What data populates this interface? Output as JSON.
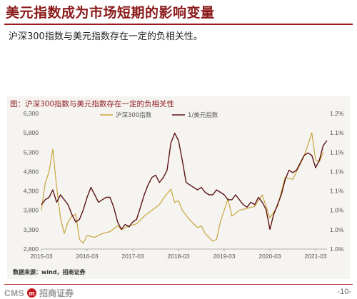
{
  "header": {
    "title": "美元指数成为市场短期的影响变量",
    "subtitle": "沪深300指数与美元指数存在一定的负相关性。"
  },
  "figure": {
    "caption": "图：沪深300指数与美元指数存在一定的负相关性",
    "source": "数据来源：wind，招商证券"
  },
  "footer": {
    "logo_en": "CMS",
    "logo_mark": "m",
    "logo_cn": "招商证券",
    "page": "-10-"
  },
  "colors": {
    "csi300": "#c8a53c",
    "usd_inverse": "#5c1414",
    "brand": "#8b1a1a"
  },
  "chart_data": {
    "type": "line",
    "title": "沪深300指数与美元指数存在一定的负相关性",
    "x_tick_labels": [
      "2015-03",
      "2016-03",
      "2017-03",
      "2018-03",
      "2019-03",
      "2020-03",
      "2021-03"
    ],
    "x_range": [
      "2015-03",
      "2021-06"
    ],
    "y_left": {
      "ticks": [
        "2,800",
        "3,300",
        "3,800",
        "4,300",
        "4,800",
        "5,300",
        "5,800",
        "6,300"
      ],
      "range": [
        2800,
        6300
      ]
    },
    "y_right": {
      "ticks": [
        "1.0%",
        "1.0%",
        "1.0%",
        "1.1%",
        "1.1%",
        "1.1%",
        "1.1%",
        "1.2%"
      ],
      "range": [
        0.95,
        1.225
      ]
    },
    "legend_position": "top-center",
    "series": [
      {
        "name": "沪深300指数",
        "axis": "left",
        "points": [
          [
            "2015-03",
            3800
          ],
          [
            "2015-04",
            4500
          ],
          [
            "2015-05",
            4800
          ],
          [
            "2015-06",
            5380
          ],
          [
            "2015-07",
            4400
          ],
          [
            "2015-08",
            3600
          ],
          [
            "2015-09",
            3200
          ],
          [
            "2015-10",
            3500
          ],
          [
            "2015-11",
            3650
          ],
          [
            "2015-12",
            3700
          ],
          [
            "2016-01",
            3050
          ],
          [
            "2016-02",
            2950
          ],
          [
            "2016-03",
            3150
          ],
          [
            "2016-05",
            3100
          ],
          [
            "2016-07",
            3200
          ],
          [
            "2016-09",
            3250
          ],
          [
            "2016-11",
            3400
          ],
          [
            "2016-12",
            3300
          ],
          [
            "2017-02",
            3400
          ],
          [
            "2017-04",
            3450
          ],
          [
            "2017-06",
            3650
          ],
          [
            "2017-08",
            3800
          ],
          [
            "2017-10",
            3950
          ],
          [
            "2017-11",
            4100
          ],
          [
            "2018-01",
            4350
          ],
          [
            "2018-02",
            4000
          ],
          [
            "2018-03",
            4050
          ],
          [
            "2018-04",
            3800
          ],
          [
            "2018-06",
            3550
          ],
          [
            "2018-08",
            3350
          ],
          [
            "2018-09",
            3400
          ],
          [
            "2018-10",
            3200
          ],
          [
            "2018-12",
            3000
          ],
          [
            "2019-01",
            3050
          ],
          [
            "2019-02",
            3500
          ],
          [
            "2019-04",
            4100
          ],
          [
            "2019-05",
            3650
          ],
          [
            "2019-07",
            3800
          ],
          [
            "2019-09",
            3850
          ],
          [
            "2019-11",
            3900
          ],
          [
            "2020-01",
            4200
          ],
          [
            "2020-03",
            3600
          ],
          [
            "2020-05",
            3900
          ],
          [
            "2020-07",
            4650
          ],
          [
            "2020-09",
            4600
          ],
          [
            "2020-11",
            5000
          ],
          [
            "2020-12",
            5200
          ],
          [
            "2021-02",
            5800
          ],
          [
            "2021-03",
            5100
          ],
          [
            "2021-04",
            5050
          ],
          [
            "2021-05",
            5300
          ]
        ]
      },
      {
        "name": "1/美元指数",
        "axis": "right",
        "points": [
          [
            "2015-03",
            1.04
          ],
          [
            "2015-04",
            1.05
          ],
          [
            "2015-05",
            1.055
          ],
          [
            "2015-06",
            1.07
          ],
          [
            "2015-07",
            1.045
          ],
          [
            "2015-08",
            1.06
          ],
          [
            "2015-09",
            1.05
          ],
          [
            "2015-10",
            1.04
          ],
          [
            "2015-11",
            1.02
          ],
          [
            "2015-12",
            1.005
          ],
          [
            "2016-01",
            1.01
          ],
          [
            "2016-02",
            1.03
          ],
          [
            "2016-03",
            1.055
          ],
          [
            "2016-04",
            1.075
          ],
          [
            "2016-05",
            1.06
          ],
          [
            "2016-06",
            1.045
          ],
          [
            "2016-07",
            1.05
          ],
          [
            "2016-08",
            1.055
          ],
          [
            "2016-09",
            1.055
          ],
          [
            "2016-10",
            1.035
          ],
          [
            "2016-11",
            1.005
          ],
          [
            "2016-12",
            0.99
          ],
          [
            "2017-01",
            1.0
          ],
          [
            "2017-02",
            0.995
          ],
          [
            "2017-03",
            1.005
          ],
          [
            "2017-04",
            1.01
          ],
          [
            "2017-05",
            1.035
          ],
          [
            "2017-06",
            1.06
          ],
          [
            "2017-07",
            1.08
          ],
          [
            "2017-08",
            1.095
          ],
          [
            "2017-09",
            1.1
          ],
          [
            "2017-10",
            1.085
          ],
          [
            "2017-11",
            1.095
          ],
          [
            "2017-12",
            1.11
          ],
          [
            "2018-01",
            1.165
          ],
          [
            "2018-02",
            1.185
          ],
          [
            "2018-03",
            1.17
          ],
          [
            "2018-04",
            1.13
          ],
          [
            "2018-05",
            1.085
          ],
          [
            "2018-06",
            1.08
          ],
          [
            "2018-07",
            1.075
          ],
          [
            "2018-08",
            1.07
          ],
          [
            "2018-09",
            1.075
          ],
          [
            "2018-10",
            1.065
          ],
          [
            "2018-11",
            1.06
          ],
          [
            "2018-12",
            1.06
          ],
          [
            "2019-01",
            1.07
          ],
          [
            "2019-02",
            1.065
          ],
          [
            "2019-03",
            1.06
          ],
          [
            "2019-04",
            1.05
          ],
          [
            "2019-05",
            1.05
          ],
          [
            "2019-06",
            1.06
          ],
          [
            "2019-07",
            1.05
          ],
          [
            "2019-08",
            1.04
          ],
          [
            "2019-09",
            1.035
          ],
          [
            "2019-10",
            1.045
          ],
          [
            "2019-11",
            1.04
          ],
          [
            "2019-12",
            1.055
          ],
          [
            "2020-01",
            1.045
          ],
          [
            "2020-02",
            1.03
          ],
          [
            "2020-03",
            0.99
          ],
          [
            "2020-04",
            1.02
          ],
          [
            "2020-05",
            1.04
          ],
          [
            "2020-06",
            1.06
          ],
          [
            "2020-07",
            1.09
          ],
          [
            "2020-08",
            1.11
          ],
          [
            "2020-09",
            1.105
          ],
          [
            "2020-10",
            1.11
          ],
          [
            "2020-11",
            1.125
          ],
          [
            "2020-12",
            1.14
          ],
          [
            "2021-01",
            1.145
          ],
          [
            "2021-02",
            1.14
          ],
          [
            "2021-03",
            1.115
          ],
          [
            "2021-04",
            1.13
          ],
          [
            "2021-05",
            1.16
          ],
          [
            "2021-06",
            1.17
          ]
        ]
      }
    ]
  }
}
